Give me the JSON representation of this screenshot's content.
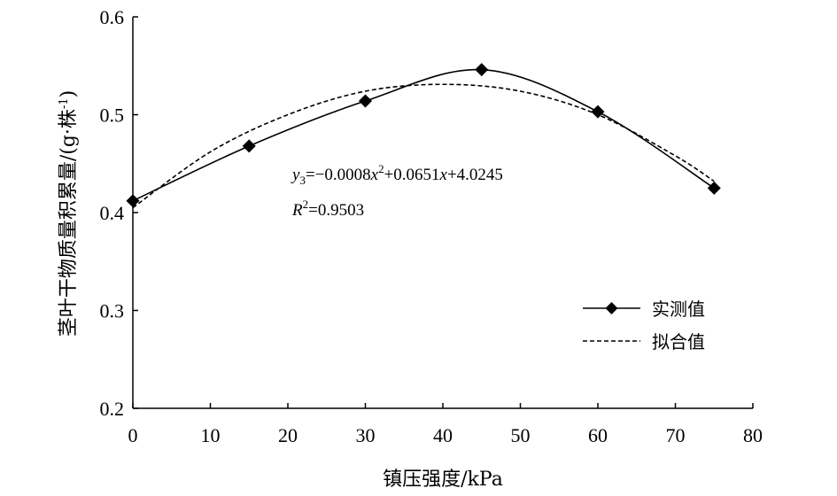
{
  "chart_data": {
    "type": "line",
    "xlabel": "镇压强度/kPa",
    "ylabel": "茎叶干物质量积累量/(g·株",
    "ylabel_sup": "-1",
    "ylabel_close": ")",
    "xlim": [
      0,
      80
    ],
    "ylim": [
      0.2,
      0.6
    ],
    "xticks": [
      "0",
      "10",
      "20",
      "30",
      "40",
      "50",
      "60",
      "70",
      "80"
    ],
    "yticks": [
      "0.2",
      "0.3",
      "0.4",
      "0.5",
      "0.6"
    ],
    "grid": false,
    "legend_position": "right-middle",
    "series": [
      {
        "name": "实测值",
        "style": "solid-diamond",
        "x": [
          0,
          15,
          30,
          45,
          60,
          75
        ],
        "y": [
          0.412,
          0.468,
          0.514,
          0.546,
          0.503,
          0.425
        ]
      },
      {
        "name": "拟合值",
        "style": "dashed",
        "x": [
          0,
          10,
          20,
          30,
          40,
          50,
          60,
          70,
          75
        ],
        "y": [
          0.405,
          0.462,
          0.5,
          0.524,
          0.531,
          0.524,
          0.5,
          0.458,
          0.432
        ]
      }
    ],
    "annotation": {
      "equation": {
        "y": "y",
        "y_sub": "3",
        "eq1": "=−0.0008",
        "x1": "x",
        "x1_sup": "2",
        "eq2": "+0.0651",
        "x2": "x",
        "eq3": "+4.0245"
      },
      "r2": {
        "R": "R",
        "R_sup": "2",
        "value": "=0.9503"
      }
    }
  }
}
